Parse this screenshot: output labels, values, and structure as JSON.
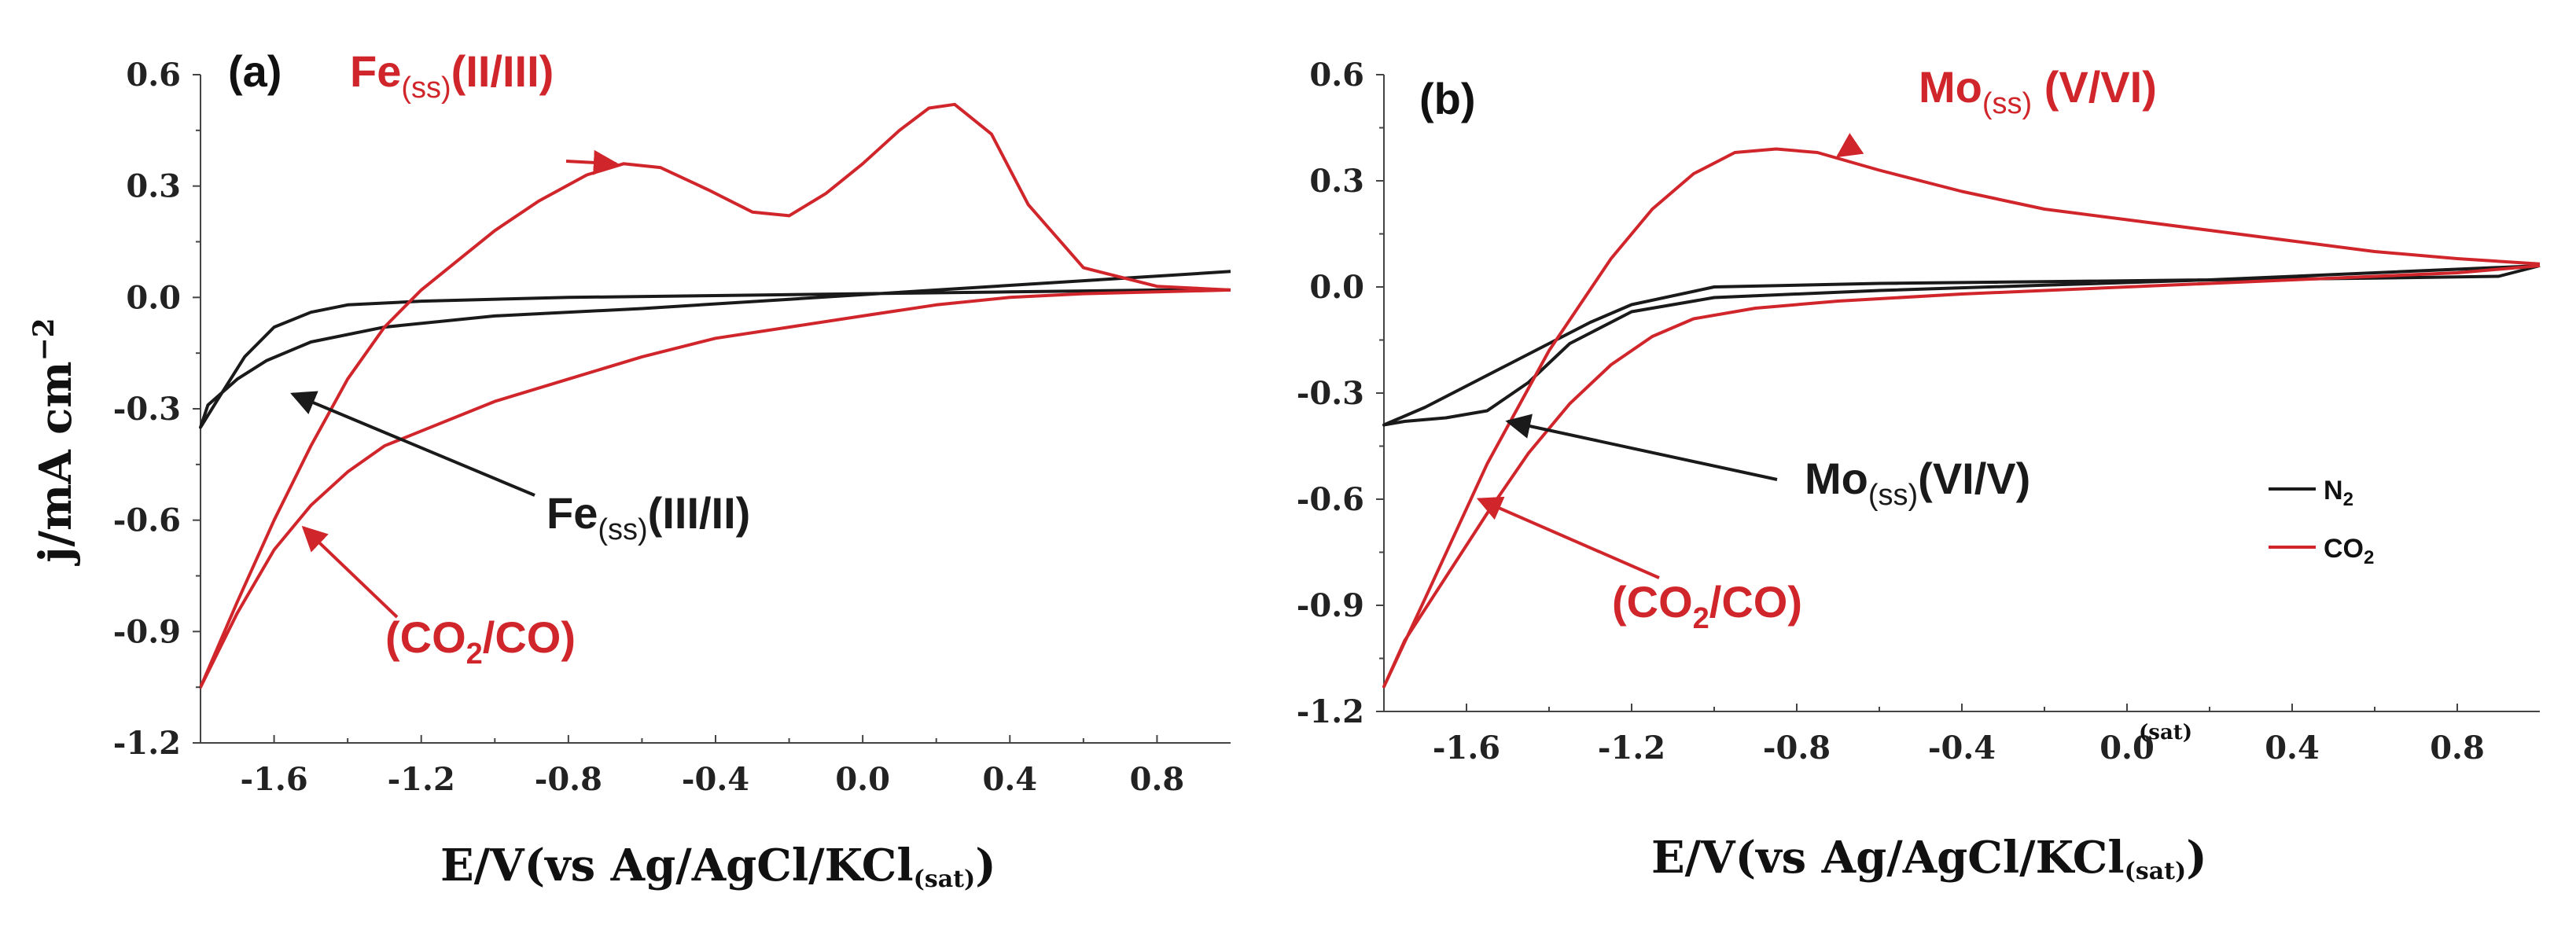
{
  "colors": {
    "n2": "#1a1a1a",
    "co2": "#d0262b",
    "axis": "#444444"
  },
  "chart_data": [
    {
      "type": "line",
      "panel_label": "(a)",
      "xlabel_main": "E/V(vs Ag/AgCl/KCl",
      "xlabel_sub": "(sat)",
      "xlabel_close": ")",
      "ylabel": "j/mA cm",
      "ylabel_sup": "−2",
      "xlim": [
        -1.8,
        1.0
      ],
      "ylim": [
        -1.2,
        0.6
      ],
      "xticks": [
        "-1.6",
        "-1.2",
        "-0.8",
        "-0.4",
        "0.0",
        "0.4",
        "0.8"
      ],
      "xtick_values": [
        -1.6,
        -1.2,
        -0.8,
        -0.4,
        0.0,
        0.4,
        0.8
      ],
      "yticks": [
        "0.6",
        "0.3",
        "0.0",
        "-0.3",
        "-0.6",
        "-0.9",
        "-1.2"
      ],
      "ytick_values": [
        0.6,
        0.3,
        0.0,
        -0.3,
        -0.6,
        -0.9,
        -1.2
      ],
      "grid": false,
      "series": [
        {
          "color_key": "n2",
          "x": [
            1.0,
            0.6,
            0.2,
            -0.2,
            -0.6,
            -1.0,
            -1.3,
            -1.5,
            -1.62,
            -1.7,
            -1.78,
            -1.8,
            -1.75,
            -1.68,
            -1.6,
            -1.5,
            -1.4,
            -1.2,
            -0.8,
            -0.4,
            0.0,
            0.4,
            0.8,
            1.0
          ],
          "y": [
            0.07,
            0.045,
            0.02,
            -0.005,
            -0.03,
            -0.05,
            -0.08,
            -0.12,
            -0.17,
            -0.22,
            -0.29,
            -0.35,
            -0.27,
            -0.16,
            -0.08,
            -0.04,
            -0.02,
            -0.01,
            0.0,
            0.005,
            0.01,
            0.015,
            0.02,
            0.02
          ]
        },
        {
          "color_key": "co2",
          "x": [
            1.0,
            0.8,
            0.6,
            0.45,
            0.35,
            0.25,
            0.18,
            0.1,
            0.0,
            -0.1,
            -0.2,
            -0.3,
            -0.42,
            -0.55,
            -0.65,
            -0.75,
            -0.88,
            -1.0,
            -1.1,
            -1.2,
            -1.3,
            -1.4,
            -1.5,
            -1.6,
            -1.7,
            -1.8,
            -1.75,
            -1.7,
            -1.6,
            -1.5,
            -1.4,
            -1.3,
            -1.2,
            -1.0,
            -0.8,
            -0.6,
            -0.4,
            -0.2,
            0.0,
            0.2,
            0.4,
            0.6,
            0.8,
            1.0
          ],
          "y": [
            0.02,
            0.03,
            0.08,
            0.25,
            0.44,
            0.52,
            0.51,
            0.45,
            0.36,
            0.28,
            0.22,
            0.23,
            0.29,
            0.35,
            0.36,
            0.33,
            0.26,
            0.18,
            0.1,
            0.02,
            -0.08,
            -0.22,
            -0.4,
            -0.6,
            -0.82,
            -1.05,
            -0.95,
            -0.85,
            -0.68,
            -0.56,
            -0.47,
            -0.4,
            -0.36,
            -0.28,
            -0.22,
            -0.16,
            -0.11,
            -0.08,
            -0.05,
            -0.02,
            0.0,
            0.01,
            0.015,
            0.02
          ]
        }
      ],
      "annotations": [
        {
          "id": "fe-oxidation",
          "color_key": "co2",
          "main": "Fe",
          "sub": "(ss)",
          "tail": "(II/III)",
          "arrow_to": [
            -0.67,
            0.36
          ]
        },
        {
          "id": "fe-reduction",
          "color_key": "n2",
          "main": "Fe",
          "sub": "(ss)",
          "tail": "(III/II)",
          "arrow_to": [
            -1.55,
            -0.26
          ]
        },
        {
          "id": "co2-reduction",
          "color_key": "co2",
          "main": "(CO",
          "sub": "2",
          "tail": "/CO)",
          "arrow_to": [
            -1.52,
            -0.62
          ]
        }
      ]
    },
    {
      "type": "line",
      "panel_label": "(b)",
      "xlabel_main": "E/V(vs Ag/AgCl/KCl",
      "xlabel_sub": "(sat)",
      "xlabel_close": ")",
      "stray_label": "(sat)",
      "xlim": [
        -1.8,
        1.0
      ],
      "ylim": [
        -1.2,
        0.6
      ],
      "xticks": [
        "-1.6",
        "-1.2",
        "-0.8",
        "-0.4",
        "0.0",
        "0.4",
        "0.8"
      ],
      "xtick_values": [
        -1.6,
        -1.2,
        -0.8,
        -0.4,
        0.0,
        0.4,
        0.8
      ],
      "yticks": [
        "0.6",
        "0.3",
        "0.0",
        "-0.3",
        "-0.6",
        "-0.9",
        "-1.2"
      ],
      "ytick_values": [
        0.6,
        0.3,
        0.0,
        -0.3,
        -0.6,
        -0.9,
        -1.2
      ],
      "grid": false,
      "legend": {
        "placement": "right",
        "items": [
          {
            "main": "N",
            "sub": "2",
            "color_key": "n2"
          },
          {
            "main": "CO",
            "sub": "2",
            "color_key": "co2"
          }
        ]
      },
      "series": [
        {
          "color_key": "n2",
          "x": [
            1.0,
            0.6,
            0.2,
            -0.2,
            -0.6,
            -1.0,
            -1.2,
            -1.35,
            -1.45,
            -1.55,
            -1.65,
            -1.75,
            -1.8,
            -1.7,
            -1.6,
            -1.5,
            -1.4,
            -1.3,
            -1.2,
            -1.0,
            -0.6,
            -0.2,
            0.2,
            0.6,
            0.9,
            1.0
          ],
          "y": [
            0.06,
            0.04,
            0.02,
            0.005,
            -0.01,
            -0.03,
            -0.07,
            -0.16,
            -0.27,
            -0.35,
            -0.37,
            -0.38,
            -0.39,
            -0.34,
            -0.28,
            -0.22,
            -0.16,
            -0.1,
            -0.05,
            0.0,
            0.01,
            0.015,
            0.02,
            0.025,
            0.03,
            0.06
          ]
        },
        {
          "color_key": "co2",
          "x": [
            1.0,
            0.8,
            0.6,
            0.4,
            0.2,
            0.0,
            -0.2,
            -0.4,
            -0.6,
            -0.75,
            -0.85,
            -0.95,
            -1.05,
            -1.15,
            -1.25,
            -1.4,
            -1.55,
            -1.7,
            -1.8,
            -1.75,
            -1.65,
            -1.55,
            -1.45,
            -1.35,
            -1.25,
            -1.15,
            -1.05,
            -0.9,
            -0.7,
            -0.4,
            0.0,
            0.4,
            0.8,
            1.0
          ],
          "y": [
            0.065,
            0.08,
            0.1,
            0.13,
            0.16,
            0.19,
            0.22,
            0.27,
            0.33,
            0.38,
            0.39,
            0.38,
            0.32,
            0.22,
            0.08,
            -0.18,
            -0.5,
            -0.88,
            -1.13,
            -1.0,
            -0.82,
            -0.64,
            -0.47,
            -0.33,
            -0.22,
            -0.14,
            -0.09,
            -0.06,
            -0.04,
            -0.02,
            0.0,
            0.02,
            0.04,
            0.06
          ]
        }
      ],
      "annotations": [
        {
          "id": "mo-oxidation",
          "color_key": "co2",
          "main": "Mo",
          "sub": "(ss)",
          "tail": " (V/VI)",
          "arrow_to": [
            -0.7,
            0.37
          ]
        },
        {
          "id": "mo-reduction",
          "color_key": "n2",
          "main": "Mo",
          "sub": "(ss)",
          "tail": "(VI/V)",
          "arrow_to": [
            -1.5,
            -0.38
          ]
        },
        {
          "id": "co2-reduction-b",
          "color_key": "co2",
          "main": "(CO",
          "sub": "2",
          "tail": "/CO)",
          "arrow_to": [
            -1.57,
            -0.6
          ]
        }
      ]
    }
  ]
}
